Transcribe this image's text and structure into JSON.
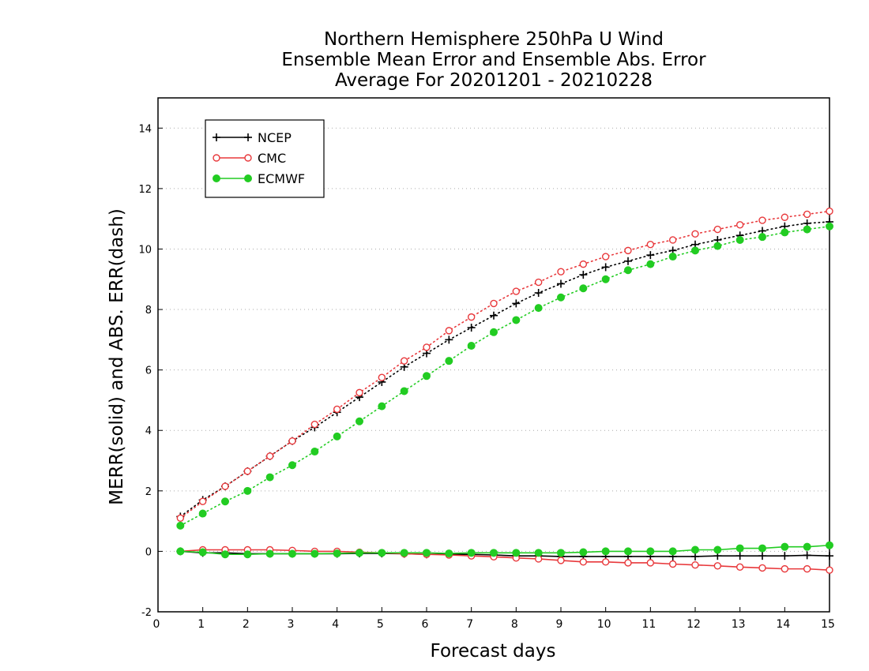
{
  "chart_data": {
    "type": "line",
    "title": [
      "Northern Hemisphere 250hPa U Wind",
      "Ensemble Mean Error and Ensemble Abs. Error",
      "Average For 20201201 - 20210228"
    ],
    "xlabel": "Forecast days",
    "ylabel": "MERR(solid) and ABS. ERR(dash)",
    "xlim": [
      0,
      15
    ],
    "ylim": [
      -2,
      15
    ],
    "x_ticks": [
      "0",
      "1",
      "2",
      "3",
      "4",
      "5",
      "6",
      "7",
      "8",
      "9",
      "10",
      "11",
      "12",
      "13",
      "14",
      "15"
    ],
    "y_ticks": [
      "-2",
      "0",
      "2",
      "4",
      "6",
      "8",
      "10",
      "12",
      "14"
    ],
    "grid": "horizontal dotted",
    "legend_position": "top-left",
    "x": [
      0.5,
      1,
      1.5,
      2,
      2.5,
      3,
      3.5,
      4,
      4.5,
      5,
      5.5,
      6,
      6.5,
      7,
      7.5,
      8,
      8.5,
      9,
      9.5,
      10,
      10.5,
      11,
      11.5,
      12,
      12.5,
      13,
      13.5,
      14,
      14.5,
      15
    ],
    "series": [
      {
        "name": "NCEP",
        "color": "#000000",
        "marker": "plus",
        "abs_err": [
          1.15,
          1.7,
          2.15,
          2.65,
          3.15,
          3.65,
          4.1,
          4.6,
          5.1,
          5.6,
          6.1,
          6.55,
          7.0,
          7.4,
          7.8,
          8.2,
          8.55,
          8.85,
          9.15,
          9.4,
          9.6,
          9.8,
          9.95,
          10.15,
          10.3,
          10.45,
          10.6,
          10.75,
          10.85,
          10.9
        ],
        "mean_err": [
          0.0,
          -0.05,
          -0.05,
          -0.08,
          -0.08,
          -0.08,
          -0.08,
          -0.08,
          -0.07,
          -0.07,
          -0.08,
          -0.1,
          -0.1,
          -0.1,
          -0.12,
          -0.15,
          -0.15,
          -0.17,
          -0.17,
          -0.17,
          -0.17,
          -0.17,
          -0.17,
          -0.17,
          -0.15,
          -0.15,
          -0.15,
          -0.15,
          -0.13,
          -0.15
        ]
      },
      {
        "name": "CMC",
        "color": "#e8383b",
        "marker": "open-circle",
        "abs_err": [
          1.1,
          1.65,
          2.15,
          2.65,
          3.15,
          3.65,
          4.2,
          4.7,
          5.25,
          5.75,
          6.3,
          6.75,
          7.3,
          7.75,
          8.2,
          8.6,
          8.9,
          9.25,
          9.5,
          9.75,
          9.95,
          10.15,
          10.3,
          10.5,
          10.65,
          10.8,
          10.95,
          11.05,
          11.15,
          11.25
        ],
        "mean_err": [
          0.0,
          0.05,
          0.05,
          0.05,
          0.05,
          0.03,
          0.0,
          0.0,
          -0.03,
          -0.05,
          -0.08,
          -0.1,
          -0.12,
          -0.15,
          -0.18,
          -0.22,
          -0.25,
          -0.3,
          -0.35,
          -0.35,
          -0.38,
          -0.38,
          -0.42,
          -0.45,
          -0.48,
          -0.52,
          -0.55,
          -0.58,
          -0.58,
          -0.62
        ]
      },
      {
        "name": "ECMWF",
        "color": "#22cc22",
        "marker": "filled-circle",
        "abs_err": [
          0.85,
          1.25,
          1.65,
          2.0,
          2.45,
          2.85,
          3.3,
          3.8,
          4.3,
          4.8,
          5.3,
          5.8,
          6.3,
          6.8,
          7.25,
          7.65,
          8.05,
          8.4,
          8.7,
          9.0,
          9.3,
          9.5,
          9.75,
          9.95,
          10.1,
          10.3,
          10.4,
          10.55,
          10.65,
          10.75
        ],
        "mean_err": [
          0.0,
          -0.03,
          -0.1,
          -0.1,
          -0.08,
          -0.08,
          -0.08,
          -0.07,
          -0.05,
          -0.05,
          -0.05,
          -0.05,
          -0.07,
          -0.05,
          -0.05,
          -0.05,
          -0.05,
          -0.05,
          -0.03,
          0.0,
          0.0,
          0.0,
          0.0,
          0.05,
          0.05,
          0.1,
          0.1,
          0.15,
          0.15,
          0.2
        ]
      }
    ]
  }
}
